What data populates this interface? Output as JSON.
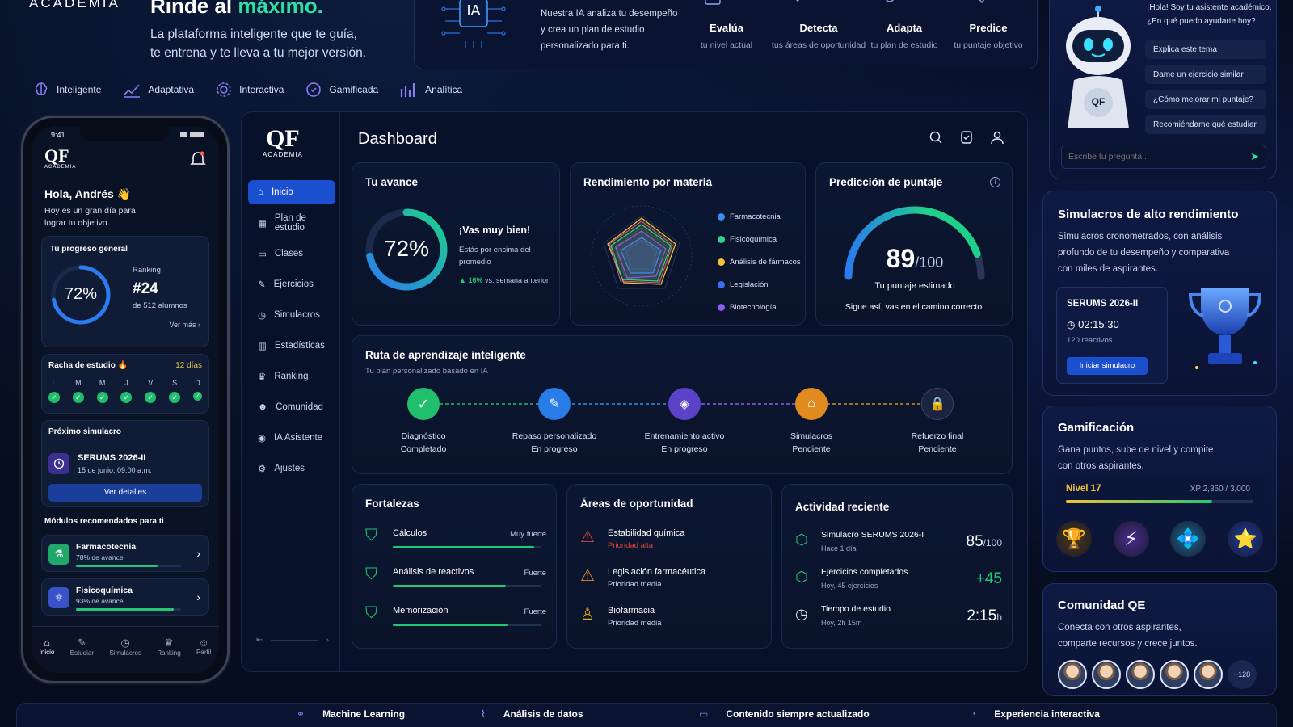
{
  "brand": {
    "logo_sub": "ACADEMIA",
    "phone_logo": "QF",
    "dash_logo": "QF"
  },
  "hero": {
    "title_prefix": "Rinde al ",
    "title_accent": "máximo.",
    "subtitle_line1": "La plataforma inteligente que te guía,",
    "subtitle_line2": "te entrena y te lleva a tu mejor versión."
  },
  "features": [
    {
      "label": "Inteligente",
      "icon": "brain-icon"
    },
    {
      "label": "Adaptativa",
      "icon": "chart-up-icon"
    },
    {
      "label": "Interactiva",
      "icon": "gear-icon"
    },
    {
      "label": "Gamificada",
      "icon": "badge-icon"
    },
    {
      "label": "Analítica",
      "icon": "bar-chart-icon"
    }
  ],
  "ia_panel": {
    "badge": "IA",
    "text_line1": "Nuestra IA analiza tu desempeño",
    "text_line2": "y crea un plan de estudio",
    "text_line3": "personalizado para ti.",
    "steps": [
      {
        "title": "Evalúa",
        "sub": "tu nivel actual"
      },
      {
        "title": "Detecta",
        "sub": "tus áreas de oportunidad"
      },
      {
        "title": "Adapta",
        "sub": "tu plan de estudio"
      },
      {
        "title": "Predice",
        "sub": "tu puntaje objetivo"
      }
    ]
  },
  "phone": {
    "time": "9:41",
    "greeting": "Hola, Andrés 👋",
    "greeting_sub_1": "Hoy es un gran día para",
    "greeting_sub_2": "lograr tu objetivo.",
    "progress_title": "Tu progreso general",
    "progress_value": "72%",
    "progress_fraction": 0.72,
    "ranking_label": "Ranking",
    "ranking_value": "#24",
    "ranking_sub": "de 512 alumnos",
    "see_more": "Ver más",
    "streak_title": "Racha de estudio 🔥",
    "streak_days": "12 días",
    "week": [
      "L",
      "M",
      "M",
      "J",
      "V",
      "S",
      "D"
    ],
    "next_sim_title": "Próximo simulacro",
    "next_sim_name": "SERUMS 2026-II",
    "next_sim_date": "15 de junio, 09:00 a.m.",
    "next_sim_button": "Ver detalles",
    "modules_title": "Módulos recomendados para ti",
    "modules": [
      {
        "name": "Farmacotecnia",
        "progress_text": "78% de avance",
        "progress": 0.78
      },
      {
        "name": "Fisicoquímica",
        "progress_text": "93% de avance",
        "progress": 0.93
      }
    ],
    "nav": [
      "Inicio",
      "Estudiar",
      "Simulacros",
      "Ranking",
      "Perfil"
    ]
  },
  "dashboard": {
    "title": "Dashboard",
    "sidebar": [
      "Inicio",
      "Plan de estudio",
      "Clases",
      "Ejercicios",
      "Simulacros",
      "Estadísticas",
      "Ranking",
      "Comunidad",
      "IA Asistente",
      "Ajustes"
    ],
    "avance": {
      "title": "Tu avance",
      "value": "72%",
      "fraction": 0.72,
      "headline": "¡Vas muy bien!",
      "desc_1": "Estás por encima del",
      "desc_2": "promedio",
      "delta": "16%",
      "delta_text": "vs. semana anterior"
    },
    "rendimiento": {
      "title": "Rendimiento por materia",
      "legend": [
        {
          "label": "Farmacotecnia",
          "color": "#3b8cf0"
        },
        {
          "label": "Fisicoquímica",
          "color": "#2fd48a"
        },
        {
          "label": "Análisis de fármacos",
          "color": "#f0c23b"
        },
        {
          "label": "Legislación",
          "color": "#3a6cf5"
        },
        {
          "label": "Biotecnología",
          "color": "#8a5cf0"
        }
      ]
    },
    "prediccion": {
      "title": "Predicción de puntaje",
      "score": "89",
      "max": "/100",
      "fraction": 0.89,
      "label": "Tu puntaje estimado",
      "note": "Sigue así, vas en el camino correcto."
    },
    "ruta": {
      "title": "Ruta de aprendizaje inteligente",
      "subtitle": "Tu plan personalizado basado en IA",
      "steps": [
        {
          "name": "Diagnóstico",
          "status": "Completado",
          "color": "#1fbf6b"
        },
        {
          "name": "Repaso personalizado",
          "status": "En progreso",
          "color": "#2a7ce8"
        },
        {
          "name": "Entrenamiento activo",
          "status": "En progreso",
          "color": "#5a43c8"
        },
        {
          "name": "Simulacros",
          "status": "Pendiente",
          "color": "#e08a20"
        },
        {
          "name": "Refuerzo final",
          "status": "Pendiente",
          "color": "#1b2440"
        }
      ]
    },
    "fortalezas": {
      "title": "Fortalezas",
      "items": [
        {
          "name": "Cálculos",
          "level": "Muy fuerte",
          "value": 0.95
        },
        {
          "name": "Análisis de reactivos",
          "level": "Fuerte",
          "value": 0.76
        },
        {
          "name": "Memorización",
          "level": "Fuerte",
          "value": 0.77
        }
      ]
    },
    "oportunidad": {
      "title": "Áreas de oportunidad",
      "items": [
        {
          "name": "Estabilidad química",
          "priority": "Prioridad alta",
          "color": "#e0453a"
        },
        {
          "name": "Legislación farmacéutica",
          "priority": "Prioridad media",
          "color": "#e08a20"
        },
        {
          "name": "Biofarmacia",
          "priority": "Prioridad media",
          "color": "#e0a820"
        }
      ]
    },
    "actividad": {
      "title": "Actividad reciente",
      "items": [
        {
          "name": "Simulacro SERUMS 2026-I",
          "sub": "Hace 1 día",
          "value": "85",
          "unit": "/100"
        },
        {
          "name": "Ejercicios completados",
          "sub": "Hoy, 45 ejercicios",
          "value": "+45",
          "unit": ""
        },
        {
          "name": "Tiempo de estudio",
          "sub": "Hoy, 2h 15m",
          "value": "2:15",
          "unit": "h"
        }
      ]
    }
  },
  "assistant": {
    "greeting_1": "¡Hola! Soy tu asistente académico.",
    "greeting_2": "¿En qué puedo ayudarte hoy?",
    "robot_label": "QF",
    "suggestions": [
      "Explica este tema",
      "Dame un ejercicio similar",
      "¿Cómo mejorar mi puntaje?",
      "Recomiéndame qué estudiar"
    ],
    "input_placeholder": "Escribe tu pregunta..."
  },
  "simulacros": {
    "title": "Simulacros de alto rendimiento",
    "desc_1": "Simulacros cronometrados, con análisis",
    "desc_2": "profundo de tu desempeño y comparativa",
    "desc_3": "con miles de aspirantes.",
    "exam": "SERUMS 2026-II",
    "time": "02:15:30",
    "items": "120 reactivos",
    "button": "Iniciar simulacro"
  },
  "gamificacion": {
    "title": "Gamificación",
    "desc_1": "Gana puntos, sube de nivel y compite",
    "desc_2": "con otros aspirantes.",
    "level": "Nivel 17",
    "xp": "XP 2,350 / 3,000",
    "xp_fraction": 0.78,
    "medals": [
      "🏆",
      "⚡",
      "💠",
      "⭐"
    ]
  },
  "comunidad": {
    "title": "Comunidad QE",
    "desc_1": "Conecta con otros aspirantes,",
    "desc_2": "comparte recursos y crece juntos.",
    "more": "+128"
  },
  "bottom_strip": [
    "Machine Learning",
    "Análisis de datos",
    "Contenido siempre actualizado",
    "Experiencia interactiva"
  ],
  "colors": {
    "accent": "#2fe0a0",
    "primary": "#1a4fd0",
    "bg": "#060d1e"
  }
}
